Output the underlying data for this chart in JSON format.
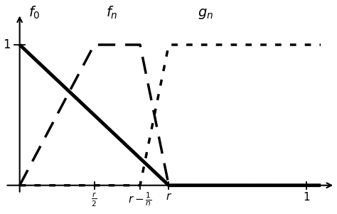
{
  "bg_color": "#ffffff",
  "r": 0.52,
  "n_inv": 0.1,
  "figsize": [
    4.74,
    3.01
  ],
  "dpi": 100,
  "lw_solid": 3.5,
  "lw_dashed": 2.5,
  "lw_dotted": 2.5,
  "xlim": [
    -0.05,
    1.1
  ],
  "ylim": [
    -0.18,
    1.28
  ],
  "tick_fontsize": 11,
  "label_fontsize": 14,
  "ytick_fontsize": 12
}
